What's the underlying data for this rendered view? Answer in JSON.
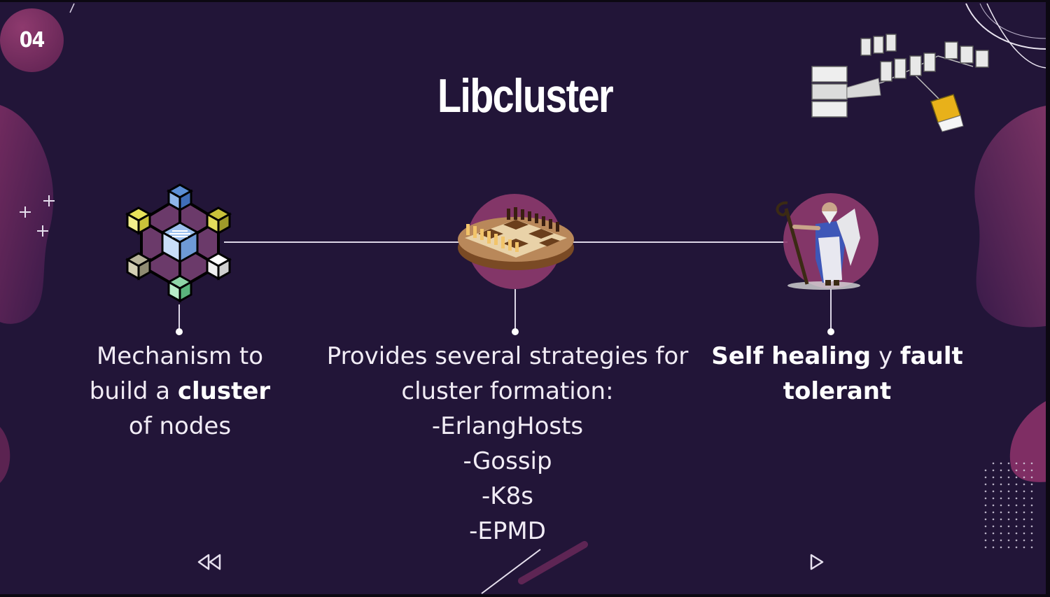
{
  "slide": {
    "number": "04",
    "title": "Libcluster"
  },
  "items": [
    {
      "icon": "network-cubes-icon",
      "line1": "Mechanism to",
      "line2_pre": "build a ",
      "line2_bold": "cluster",
      "line3": "of nodes"
    },
    {
      "icon": "chessboard-icon",
      "line1": "Provides several strategies for",
      "line2": "cluster formation:",
      "strategies": [
        "-ErlangHosts",
        "-Gossip",
        "-K8s",
        "-EPMD"
      ]
    },
    {
      "icon": "wizard-figure-icon",
      "line1_bold_a": "Self healing",
      "line1_mid": " y ",
      "line1_bold_b": "fault",
      "line2_bold": "tolerant"
    }
  ],
  "nav": {
    "prev_icon": "rewind-icon",
    "next_icon": "play-next-icon"
  },
  "decor": {
    "servers_icon": "server-network-icon",
    "background": "#221538",
    "accent": "#8e3a6e"
  }
}
